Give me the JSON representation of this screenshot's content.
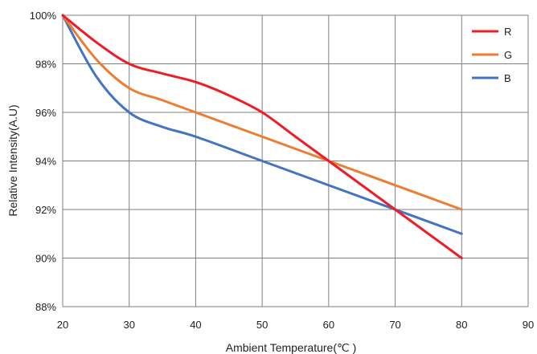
{
  "chart_data": {
    "type": "line",
    "xlabel": "Ambient Temperature(℃ )",
    "ylabel": "Relative Intensity(A.U)",
    "xlim": [
      20,
      90
    ],
    "ylim": [
      88,
      100
    ],
    "xticks": [
      20,
      30,
      40,
      50,
      60,
      70,
      80,
      90
    ],
    "yticks": [
      88,
      90,
      92,
      94,
      96,
      98,
      100
    ],
    "ytick_suffix": "%",
    "grid": true,
    "legend_position": "top-right",
    "series": [
      {
        "name": "R",
        "color": "#ee1c24",
        "x": [
          20,
          25,
          30,
          35,
          40,
          45,
          50,
          55,
          60,
          65,
          70,
          75,
          80
        ],
        "y": [
          100,
          98.9,
          98.0,
          97.6,
          97.25,
          96.7,
          96.0,
          95.0,
          94.0,
          93.0,
          92.0,
          91.0,
          90.0
        ]
      },
      {
        "name": "G",
        "color": "#ed7d31",
        "x": [
          20,
          25,
          30,
          35,
          40,
          50,
          60,
          70,
          80
        ],
        "y": [
          100,
          98.2,
          97.0,
          96.5,
          96.0,
          95.0,
          94.0,
          93.0,
          92.0
        ]
      },
      {
        "name": "B",
        "color": "#4472c4",
        "x": [
          20,
          25,
          30,
          35,
          40,
          50,
          60,
          70,
          80
        ],
        "y": [
          100,
          97.5,
          96.0,
          95.4,
          95.0,
          94.0,
          93.0,
          92.0,
          91.0
        ]
      }
    ]
  }
}
